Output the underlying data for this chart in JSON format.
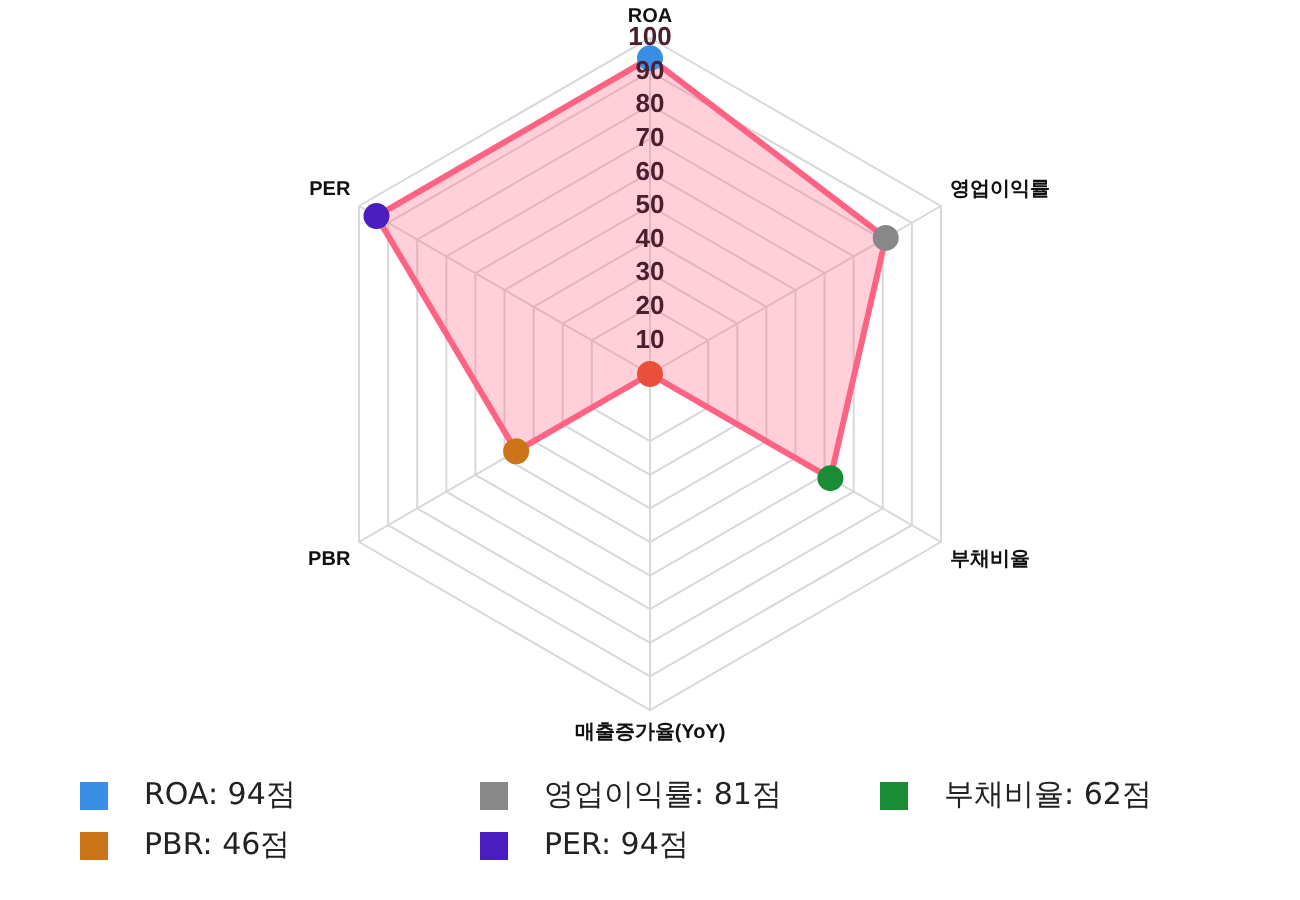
{
  "chart_data": {
    "type": "radar",
    "categories": [
      "ROA",
      "영업이익률",
      "부채비율",
      "매출증가율(YoY)",
      "PBR",
      "PER"
    ],
    "series": [
      {
        "color": "#ff6384",
        "colors": [
          "#3a8ee6",
          "#888888",
          "#1a8c36",
          "#e8503a",
          "#cc7418",
          "#4a1ec0"
        ],
        "values": [
          94,
          81,
          62,
          0,
          46,
          94
        ]
      }
    ],
    "annotations": [
      "ROA: 94점",
      "영업이익률: 81점",
      "부채비율: 62점",
      "PBR: 46점",
      "PER: 94점"
    ],
    "ylim": [
      0,
      100
    ],
    "yticks": [
      10,
      20,
      30,
      40,
      50,
      60,
      70,
      80,
      90,
      100
    ],
    "grid": true,
    "marker": "circle",
    "line_style": "solid"
  }
}
